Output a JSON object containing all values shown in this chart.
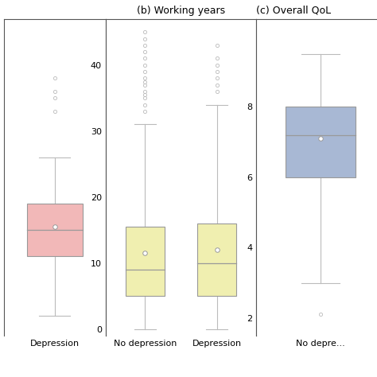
{
  "panels": [
    {
      "title": "",
      "xlabel": "Depression",
      "box_color": "#f2b8b8",
      "edge_color": "#999999",
      "whisker_color": "#bbbbbb",
      "median": 15,
      "q1": 11,
      "q3": 19,
      "whisker_low": 2,
      "whisker_high": 26,
      "mean": 15.5,
      "outliers": [
        33,
        35,
        36,
        38
      ],
      "ylim": [
        -1,
        47
      ],
      "yticks": []
    },
    {
      "title": "(b) Working years",
      "xlabel_list": [
        "No depression",
        "Depression"
      ],
      "box_color": "#f0efb0",
      "edge_color": "#999999",
      "whisker_color": "#bbbbbb",
      "boxes": [
        {
          "label": "No depression",
          "median": 9,
          "q1": 5,
          "q3": 15.5,
          "whisker_low": 0,
          "whisker_high": 31,
          "mean": 11.5,
          "outliers": [
            33,
            34,
            35,
            35.5,
            36,
            37,
            37.5,
            38,
            39,
            40,
            41,
            42,
            43,
            44,
            45
          ]
        },
        {
          "label": "Depression",
          "median": 10,
          "q1": 5,
          "q3": 16,
          "whisker_low": 0,
          "whisker_high": 34,
          "mean": 12,
          "outliers": [
            36,
            37,
            38,
            39,
            40,
            41,
            43
          ]
        }
      ],
      "ylim": [
        -1,
        47
      ],
      "yticks": [
        0,
        10,
        20,
        30,
        40
      ]
    },
    {
      "title": "(c) Overall QoL",
      "xlabel_list": [
        "No depre..."
      ],
      "box_color": "#a8b8d4",
      "edge_color": "#999999",
      "whisker_color": "#bbbbbb",
      "boxes": [
        {
          "label": "No depression",
          "median": 7.2,
          "q1": 6.0,
          "q3": 8.0,
          "whisker_low": 3.0,
          "whisker_high": 9.5,
          "mean": 7.1,
          "outliers": [
            2.1
          ]
        }
      ],
      "ylim": [
        1.5,
        10.5
      ],
      "yticks": [
        2,
        4,
        6,
        8
      ]
    }
  ],
  "figure_bg": "#ffffff",
  "panel_bg": "#ffffff",
  "border_color": "#555555"
}
